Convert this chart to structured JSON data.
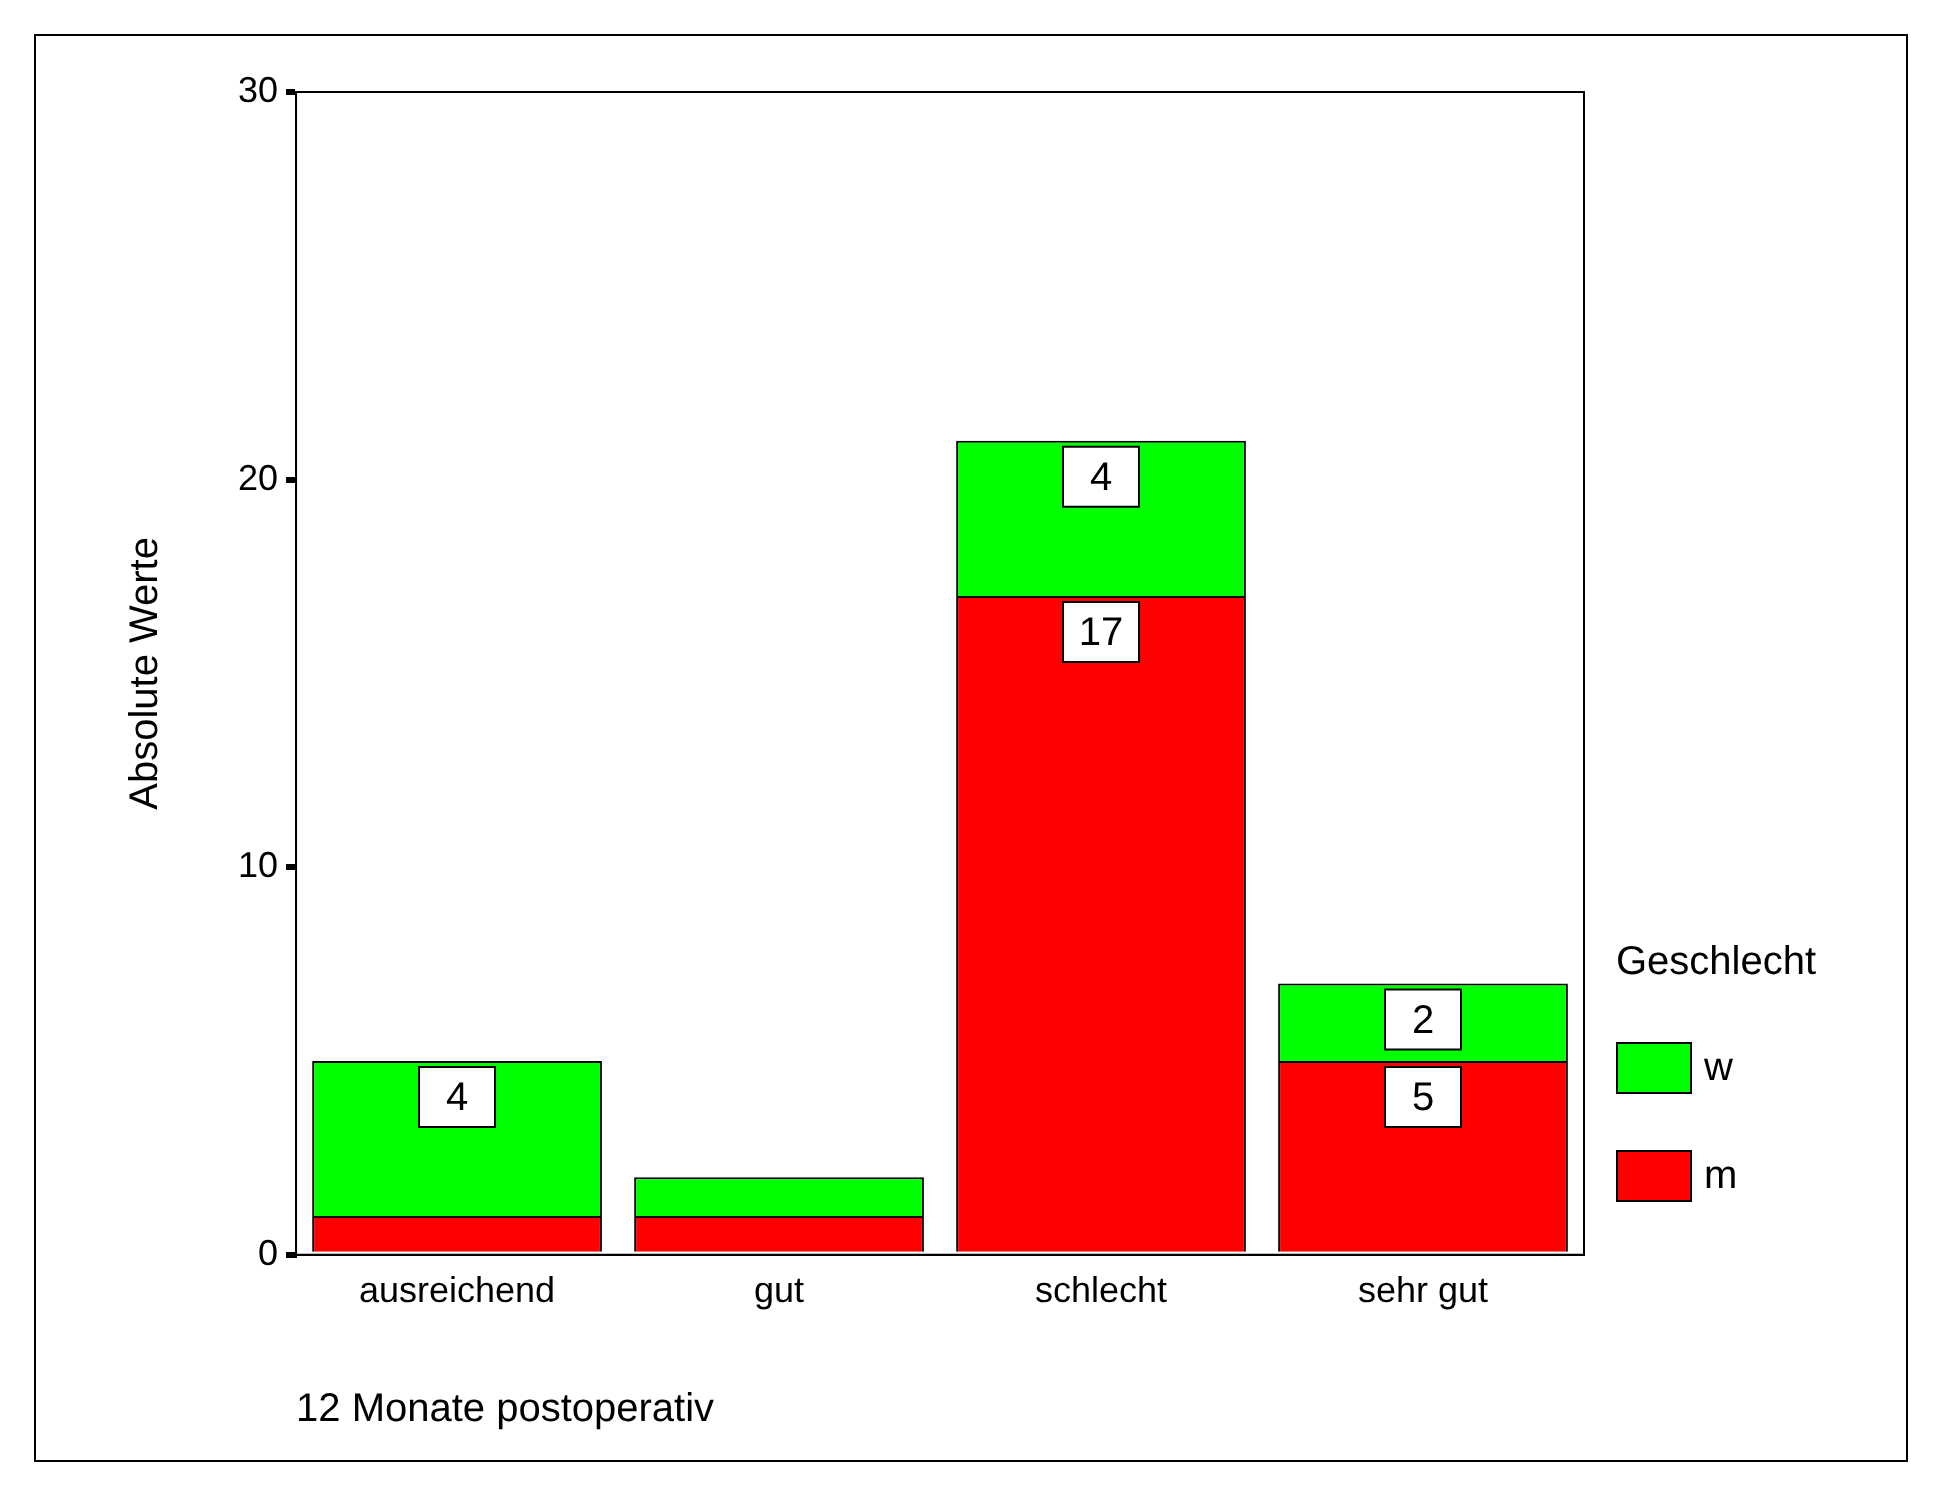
{
  "chart_data": {
    "type": "bar",
    "stacked": true,
    "xlabel": "12 Monate postoperativ",
    "ylabel": "Absolute Werte",
    "legend_title": "Geschlecht",
    "legend": "right",
    "grid": false,
    "categories": [
      "ausreichend",
      "gut",
      "schlecht",
      "sehr gut"
    ],
    "ylim": [
      0,
      30
    ],
    "yticks": [
      0,
      10,
      20,
      30
    ],
    "series": [
      {
        "name": "m",
        "color": "#ff0000",
        "values": [
          1,
          1,
          17,
          5
        ],
        "value_labels": [
          null,
          null,
          "17",
          "5"
        ]
      },
      {
        "name": "w",
        "color": "#00ff00",
        "values": [
          4,
          1,
          4,
          2
        ],
        "value_labels": [
          "4",
          null,
          "4",
          "2"
        ]
      }
    ]
  }
}
